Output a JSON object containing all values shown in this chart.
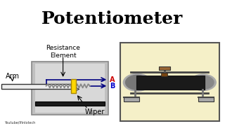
{
  "title": "Potentiometer",
  "title_bg": "#FFFF00",
  "title_color": "#000000",
  "title_fontsize": 18,
  "bg_color": "#FFFFFF",
  "arm_label": "Arm",
  "resistance_label": "Resistance\nElement",
  "wiper_label": "Wiper",
  "label_A": "A",
  "label_B": "B",
  "youtube_text": "Youtube/Ifinlotech",
  "arrow_color": "#00008B",
  "label_color_A": "#CC0000",
  "label_color_B": "#0000CC",
  "box_gray": "#C0C0C0",
  "box_edge": "#888888",
  "wire_blue": "#000080",
  "zigzag_color": "#888888",
  "yellow_wiper": "#FFD700",
  "black_base": "#1A1A1A",
  "arm_color": "#DDDDDD",
  "arm_edge": "#555555",
  "photo_bg": "#F5F0C8",
  "photo_edge": "#555555"
}
